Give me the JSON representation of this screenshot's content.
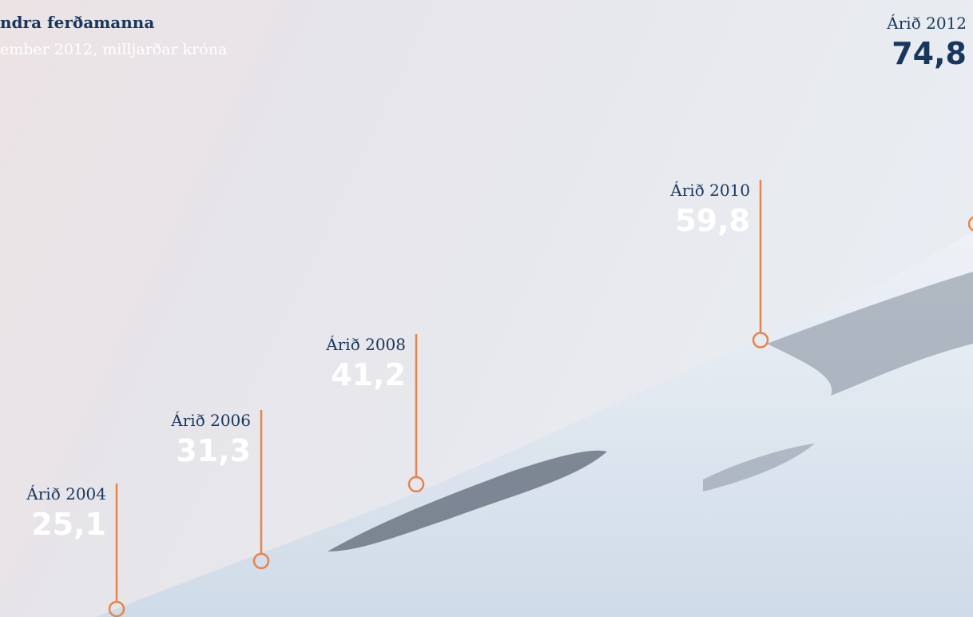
{
  "chart_data": {
    "type": "milestones",
    "title": "ndra ferðamanna",
    "subtitle": "ember 2012, milljarðar króna",
    "categories": [
      "Árið 2004",
      "Árið 2006",
      "Árið 2008",
      "Árið 2010",
      "Árið 2012"
    ],
    "values": [
      25.1,
      31.3,
      41.2,
      59.8,
      74.8
    ],
    "value_labels": [
      "25,1",
      "31,3",
      "41,2",
      "59,8",
      "74,8"
    ],
    "color": "#e8834a"
  }
}
